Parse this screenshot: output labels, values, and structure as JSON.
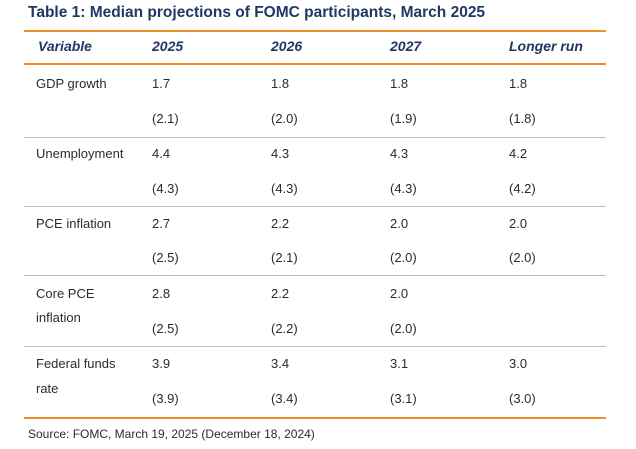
{
  "title": "Table 1: Median projections of FOMC participants, March 2025",
  "columns": [
    "Variable",
    "2025",
    "2026",
    "2027",
    "Longer run"
  ],
  "rows": [
    {
      "label": [
        "GDP growth"
      ],
      "values": [
        "1.7",
        "1.8",
        "1.8",
        "1.8"
      ],
      "previous": [
        "(2.1)",
        "(2.0)",
        "(1.9)",
        "(1.8)"
      ]
    },
    {
      "label": [
        "Unemployment"
      ],
      "values": [
        "4.4",
        "4.3",
        "4.3",
        "4.2"
      ],
      "previous": [
        "(4.3)",
        "(4.3)",
        "(4.3)",
        "(4.2)"
      ]
    },
    {
      "label": [
        "PCE inflation"
      ],
      "values": [
        "2.7",
        "2.2",
        "2.0",
        "2.0"
      ],
      "previous": [
        "(2.5)",
        "(2.1)",
        "(2.0)",
        "(2.0)"
      ]
    },
    {
      "label": [
        "Core PCE",
        "inflation"
      ],
      "values": [
        "2.8",
        "2.2",
        "2.0",
        ""
      ],
      "previous": [
        "(2.5)",
        "(2.2)",
        "(2.0)",
        ""
      ]
    },
    {
      "label": [
        "Federal funds",
        "rate"
      ],
      "values": [
        "3.9",
        "3.4",
        "3.1",
        "3.0"
      ],
      "previous": [
        "(3.9)",
        "(3.4)",
        "(3.1)",
        "(3.0)"
      ]
    }
  ],
  "source": "Source: FOMC, March 19, 2025 (December 18, 2024)",
  "colors": {
    "title": "#1f3864",
    "accent_rule": "#f28c28",
    "row_rule": "#bdbdbd",
    "text": "#2b2b2b"
  }
}
